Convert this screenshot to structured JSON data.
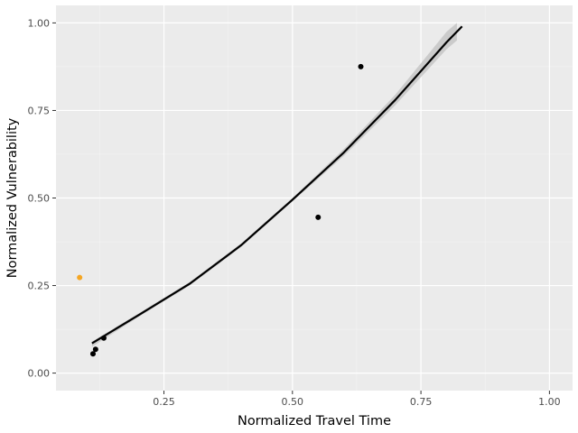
{
  "chart_data": {
    "type": "scatter",
    "xlabel": "Normalized Travel Time",
    "ylabel": "Normalized Vulnerability",
    "xlim": [
      0.04,
      1.045
    ],
    "ylim": [
      -0.05,
      1.05
    ],
    "x_ticks": [
      0.25,
      0.5,
      0.75,
      1.0
    ],
    "x_tick_labels": [
      "0.25",
      "0.50",
      "0.75",
      "1.00"
    ],
    "y_ticks": [
      0.0,
      0.25,
      0.5,
      0.75,
      1.0
    ],
    "y_tick_labels": [
      "0.00",
      "0.25",
      "0.50",
      "0.75",
      "1.00"
    ],
    "grid": true,
    "points": [
      {
        "x": 0.112,
        "y": 0.055,
        "color": "#000000"
      },
      {
        "x": 0.117,
        "y": 0.068,
        "color": "#000000"
      },
      {
        "x": 0.133,
        "y": 0.1,
        "color": "#000000"
      },
      {
        "x": 0.55,
        "y": 0.445,
        "color": "#000000"
      },
      {
        "x": 0.633,
        "y": 0.875,
        "color": "#000000"
      },
      {
        "x": 0.086,
        "y": 0.273,
        "color": "#f5a623"
      }
    ],
    "fit_curve": {
      "x": [
        0.11,
        0.2,
        0.3,
        0.4,
        0.5,
        0.6,
        0.7,
        0.8,
        0.83
      ],
      "y": [
        0.085,
        0.165,
        0.255,
        0.365,
        0.495,
        0.63,
        0.78,
        0.945,
        0.99
      ],
      "color": "#000000"
    },
    "confidence_band": {
      "x": [
        0.11,
        0.2,
        0.3,
        0.4,
        0.5,
        0.6,
        0.7,
        0.8,
        0.82
      ],
      "upper": [
        0.09,
        0.17,
        0.26,
        0.37,
        0.5,
        0.64,
        0.795,
        0.975,
        1.0
      ],
      "lower": [
        0.075,
        0.16,
        0.25,
        0.36,
        0.49,
        0.62,
        0.765,
        0.925,
        0.95
      ],
      "color": "#c6c6c6"
    },
    "colors": {
      "panel_background": "#ebebeb",
      "grid_major": "#ffffff",
      "grid_minor": "#f4f4f4",
      "tick_mark": "#333333"
    }
  }
}
